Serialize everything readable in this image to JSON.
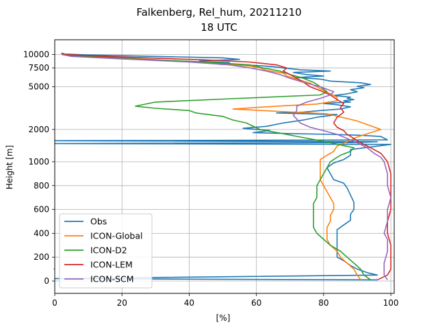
{
  "chart_data": {
    "type": "line",
    "title": "Falkenberg, Rel_hum, 20211210",
    "subtitle": "18 UTC",
    "xlabel": "[%]",
    "ylabel": "Height [m]",
    "xlim": [
      0,
      101
    ],
    "x_ticks": [
      0,
      20,
      40,
      60,
      80,
      100
    ],
    "y_ticks": [
      0,
      200,
      400,
      600,
      800,
      1000,
      2000,
      5000,
      7500,
      10000
    ],
    "y_scale": "piecewise: linear 0-1000 m, logarithmic above 1000 m",
    "ylim": [
      -100,
      12000
    ],
    "grid": true,
    "legend_position": "lower-left",
    "series": [
      {
        "name": "Obs",
        "color": "#1f77b4",
        "points": [
          [
            96,
            10
          ],
          [
            95,
            10
          ],
          [
            0,
            20
          ],
          [
            96,
            50
          ],
          [
            93,
            70
          ],
          [
            90,
            100
          ],
          [
            88,
            130
          ],
          [
            86,
            170
          ],
          [
            84,
            200
          ],
          [
            84,
            260
          ],
          [
            84,
            330
          ],
          [
            84,
            380
          ],
          [
            84,
            430
          ],
          [
            86,
            470
          ],
          [
            88,
            510
          ],
          [
            88,
            560
          ],
          [
            89,
            600
          ],
          [
            89,
            660
          ],
          [
            88,
            720
          ],
          [
            87,
            780
          ],
          [
            86,
            820
          ],
          [
            83,
            850
          ],
          [
            82,
            900
          ],
          [
            81,
            950
          ],
          [
            83,
            990
          ],
          [
            86,
            1050
          ],
          [
            88,
            1150
          ],
          [
            88,
            1300
          ],
          [
            100,
            1450
          ],
          [
            0,
            1480
          ],
          [
            90,
            1510
          ],
          [
            96,
            1540
          ],
          [
            0,
            1570
          ],
          [
            99,
            1600
          ],
          [
            98,
            1660
          ],
          [
            97,
            1720
          ],
          [
            90,
            1770
          ],
          [
            82,
            1800
          ],
          [
            70,
            1830
          ],
          [
            59,
            1870
          ],
          [
            64,
            1960
          ],
          [
            56,
            2050
          ],
          [
            63,
            2140
          ],
          [
            68,
            2300
          ],
          [
            74,
            2450
          ],
          [
            78,
            2600
          ],
          [
            84,
            2750
          ],
          [
            66,
            2850
          ],
          [
            74,
            2900
          ],
          [
            79,
            3000
          ],
          [
            85,
            3100
          ],
          [
            88,
            3250
          ],
          [
            84,
            3400
          ],
          [
            80,
            3500
          ],
          [
            88,
            3600
          ],
          [
            86,
            3700
          ],
          [
            89,
            3800
          ],
          [
            87,
            3900
          ],
          [
            88,
            4000
          ],
          [
            83,
            4150
          ],
          [
            87,
            4300
          ],
          [
            90,
            4500
          ],
          [
            88,
            4700
          ],
          [
            92,
            4900
          ],
          [
            90,
            5050
          ],
          [
            94,
            5250
          ],
          [
            91,
            5450
          ],
          [
            82,
            5650
          ],
          [
            79,
            5900
          ],
          [
            72,
            6100
          ],
          [
            80,
            6300
          ],
          [
            75,
            6500
          ],
          [
            71,
            6800
          ],
          [
            82,
            7000
          ],
          [
            73,
            7200
          ],
          [
            68,
            7500
          ],
          [
            65,
            7700
          ],
          [
            60,
            7900
          ],
          [
            49,
            8100
          ],
          [
            52,
            8400
          ],
          [
            43,
            8700
          ],
          [
            55,
            9000
          ],
          [
            50,
            9300
          ],
          [
            30,
            9600
          ],
          [
            10,
            9900
          ],
          [
            3,
            10100
          ],
          [
            2,
            10300
          ]
        ]
      },
      {
        "name": "ICON-Global",
        "color": "#ff7f0e",
        "points": [
          [
            91,
            10
          ],
          [
            90,
            50
          ],
          [
            89,
            100
          ],
          [
            87,
            150
          ],
          [
            85,
            200
          ],
          [
            84,
            250
          ],
          [
            82,
            300
          ],
          [
            81,
            350
          ],
          [
            81,
            400
          ],
          [
            81,
            450
          ],
          [
            82,
            500
          ],
          [
            82,
            550
          ],
          [
            83,
            600
          ],
          [
            83,
            650
          ],
          [
            82,
            700
          ],
          [
            81,
            750
          ],
          [
            80,
            800
          ],
          [
            79,
            850
          ],
          [
            79,
            900
          ],
          [
            79,
            950
          ],
          [
            79,
            1000
          ],
          [
            79,
            1050
          ],
          [
            81,
            1150
          ],
          [
            83,
            1250
          ],
          [
            84,
            1400
          ],
          [
            90,
            1700
          ],
          [
            97,
            2000
          ],
          [
            90,
            2400
          ],
          [
            81,
            2800
          ],
          [
            53,
            3100
          ],
          [
            66,
            3300
          ],
          [
            78,
            3450
          ],
          [
            84,
            3700
          ],
          [
            84,
            4000
          ],
          [
            82,
            4300
          ],
          [
            80,
            4600
          ],
          [
            78,
            5000
          ],
          [
            76,
            5400
          ],
          [
            72,
            5900
          ],
          [
            69,
            6300
          ],
          [
            68,
            6700
          ],
          [
            63,
            7100
          ],
          [
            61,
            7500
          ],
          [
            58,
            7800
          ],
          [
            50,
            8200
          ],
          [
            40,
            8600
          ],
          [
            20,
            9300
          ],
          [
            5,
            9800
          ],
          [
            2,
            10200
          ]
        ]
      },
      {
        "name": "ICON-D2",
        "color": "#2ca02c",
        "points": [
          [
            94,
            10
          ],
          [
            92,
            50
          ],
          [
            91,
            100
          ],
          [
            89,
            150
          ],
          [
            87,
            200
          ],
          [
            85,
            250
          ],
          [
            82,
            300
          ],
          [
            80,
            350
          ],
          [
            78,
            400
          ],
          [
            77,
            450
          ],
          [
            77,
            500
          ],
          [
            77,
            550
          ],
          [
            77,
            600
          ],
          [
            77,
            650
          ],
          [
            78,
            700
          ],
          [
            78,
            750
          ],
          [
            78,
            800
          ],
          [
            79,
            850
          ],
          [
            80,
            900
          ],
          [
            81,
            950
          ],
          [
            82,
            1000
          ],
          [
            83,
            1050
          ],
          [
            85,
            1150
          ],
          [
            88,
            1250
          ],
          [
            89,
            1350
          ],
          [
            80,
            1550
          ],
          [
            73,
            1700
          ],
          [
            67,
            1850
          ],
          [
            61,
            2000
          ],
          [
            59,
            2150
          ],
          [
            57,
            2300
          ],
          [
            53,
            2450
          ],
          [
            50,
            2650
          ],
          [
            42,
            2850
          ],
          [
            40,
            3000
          ],
          [
            30,
            3150
          ],
          [
            24,
            3300
          ],
          [
            30,
            3600
          ],
          [
            55,
            3900
          ],
          [
            79,
            4200
          ],
          [
            81,
            4500
          ],
          [
            79,
            5000
          ],
          [
            77,
            5500
          ],
          [
            74,
            6000
          ],
          [
            70,
            6500
          ],
          [
            67,
            7000
          ],
          [
            62,
            7500
          ],
          [
            58,
            8000
          ],
          [
            45,
            8500
          ],
          [
            20,
            9200
          ],
          [
            4,
            9800
          ],
          [
            2,
            10200
          ]
        ]
      },
      {
        "name": "ICON-LEM",
        "color": "#d62728",
        "points": [
          [
            96,
            10
          ],
          [
            99,
            50
          ],
          [
            100,
            100
          ],
          [
            100,
            200
          ],
          [
            100,
            300
          ],
          [
            99,
            400
          ],
          [
            99,
            500
          ],
          [
            100,
            600
          ],
          [
            100,
            700
          ],
          [
            100,
            800
          ],
          [
            100,
            900
          ],
          [
            99,
            1000
          ],
          [
            98,
            1100
          ],
          [
            97,
            1200
          ],
          [
            95,
            1300
          ],
          [
            93,
            1400
          ],
          [
            91,
            1500
          ],
          [
            89,
            1650
          ],
          [
            87,
            1800
          ],
          [
            86,
            1950
          ],
          [
            84,
            2100
          ],
          [
            83,
            2300
          ],
          [
            84,
            2600
          ],
          [
            86,
            2900
          ],
          [
            85,
            3200
          ],
          [
            86,
            3500
          ],
          [
            84,
            3800
          ],
          [
            82,
            4200
          ],
          [
            79,
            4600
          ],
          [
            76,
            5000
          ],
          [
            74,
            5500
          ],
          [
            72,
            6000
          ],
          [
            70,
            6500
          ],
          [
            68,
            7000
          ],
          [
            69,
            7500
          ],
          [
            66,
            8000
          ],
          [
            58,
            8500
          ],
          [
            45,
            8900
          ],
          [
            15,
            9600
          ],
          [
            3,
            10000
          ],
          [
            2,
            10300
          ]
        ]
      },
      {
        "name": "ICON-SCM",
        "color": "#9467bd",
        "points": [
          [
            99,
            10
          ],
          [
            98,
            50
          ],
          [
            98,
            150
          ],
          [
            99,
            250
          ],
          [
            99,
            350
          ],
          [
            98,
            400
          ],
          [
            99,
            500
          ],
          [
            99,
            600
          ],
          [
            100,
            700
          ],
          [
            99,
            800
          ],
          [
            99,
            900
          ],
          [
            98,
            1000
          ],
          [
            97,
            1100
          ],
          [
            95,
            1200
          ],
          [
            93,
            1350
          ],
          [
            90,
            1500
          ],
          [
            87,
            1650
          ],
          [
            84,
            1800
          ],
          [
            80,
            1950
          ],
          [
            76,
            2100
          ],
          [
            73,
            2300
          ],
          [
            72,
            2500
          ],
          [
            71,
            2700
          ],
          [
            72,
            3000
          ],
          [
            72,
            3300
          ],
          [
            75,
            3600
          ],
          [
            79,
            3900
          ],
          [
            82,
            4200
          ],
          [
            83,
            4500
          ],
          [
            79,
            5000
          ],
          [
            74,
            5500
          ],
          [
            70,
            6000
          ],
          [
            67,
            6500
          ],
          [
            63,
            7000
          ],
          [
            58,
            7500
          ],
          [
            52,
            8000
          ],
          [
            40,
            8500
          ],
          [
            20,
            9100
          ],
          [
            5,
            9600
          ],
          [
            2,
            10000
          ]
        ]
      }
    ]
  }
}
